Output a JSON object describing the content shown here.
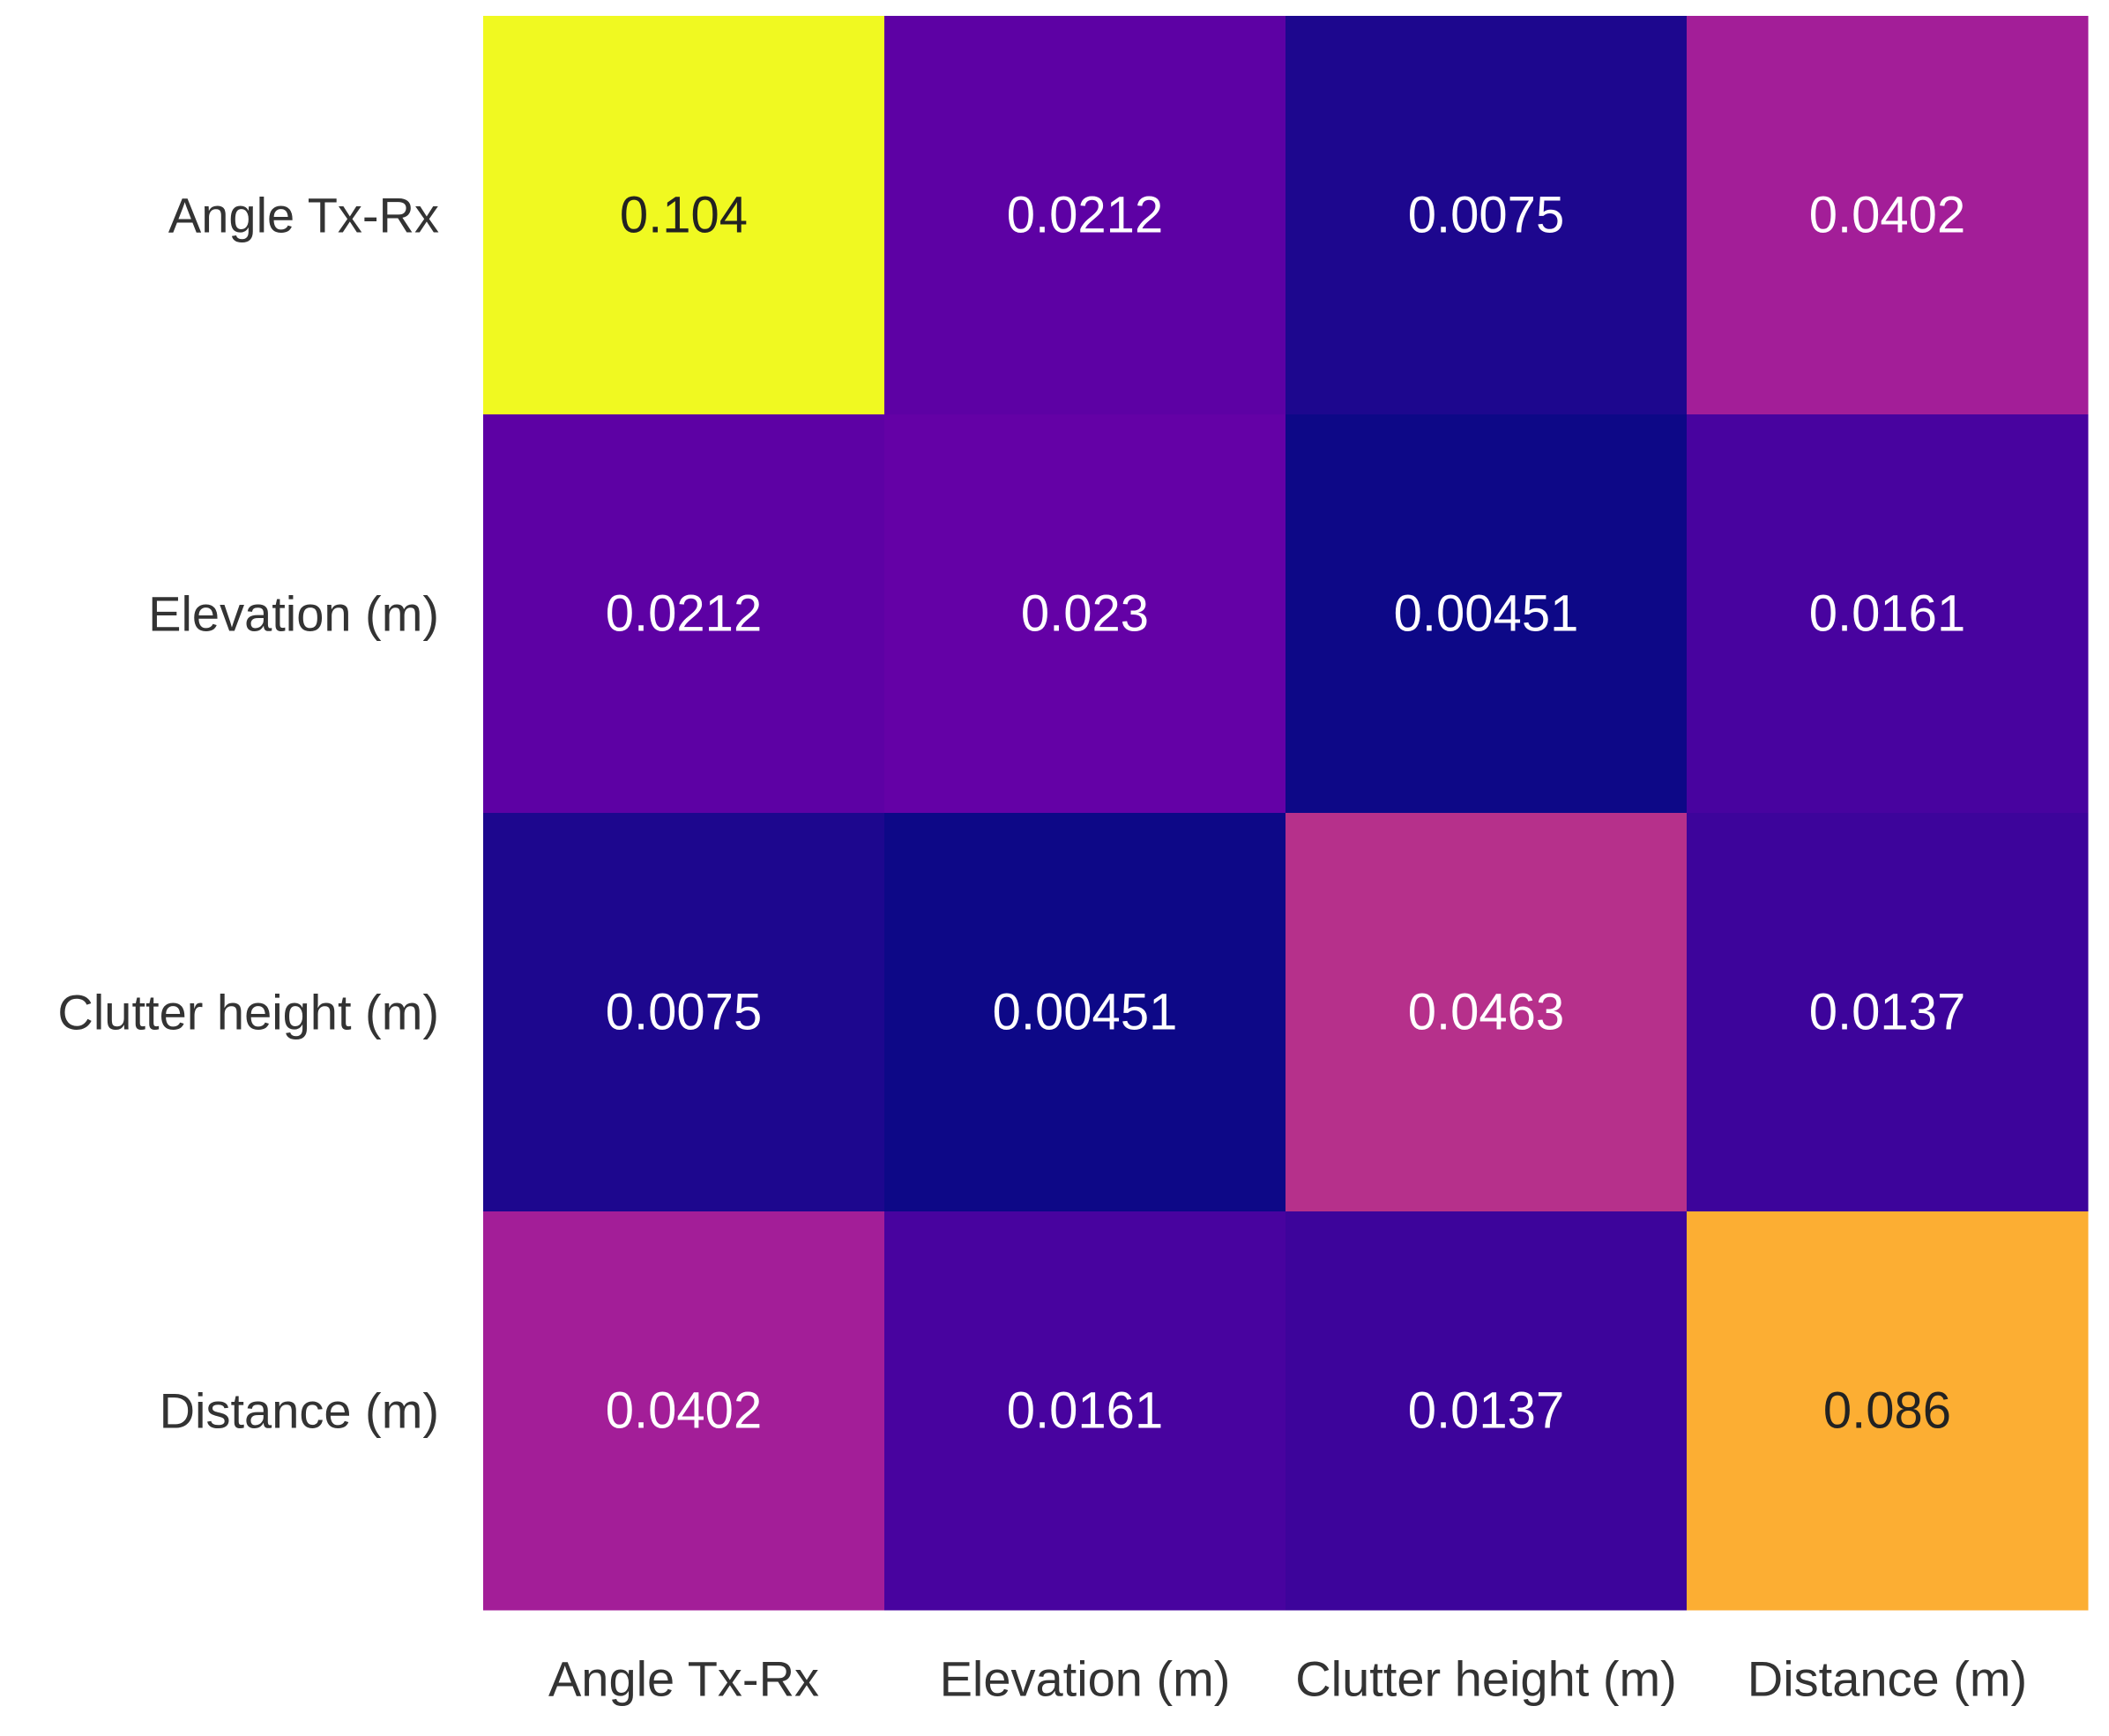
{
  "chart_data": {
    "type": "heatmap",
    "title": "",
    "xlabel": "",
    "ylabel": "",
    "row_labels": [
      "Angle Tx-Rx",
      "Elevation (m)",
      "Clutter height (m)",
      "Distance (m)"
    ],
    "column_labels": [
      "Angle Tx-Rx",
      "Elevation (m)",
      "Clutter height (m)",
      "Distance (m)"
    ],
    "values": [
      [
        0.104,
        0.0212,
        0.0075,
        0.0402
      ],
      [
        0.0212,
        0.023,
        0.00451,
        0.0161
      ],
      [
        0.0075,
        0.00451,
        0.0463,
        0.0137
      ],
      [
        0.0402,
        0.0161,
        0.0137,
        0.086
      ]
    ],
    "cell_labels": [
      [
        "0.104",
        "0.0212",
        "0.0075",
        "0.0402"
      ],
      [
        "0.0212",
        "0.023",
        "0.00451",
        "0.0161"
      ],
      [
        "0.0075",
        "0.00451",
        "0.0463",
        "0.0137"
      ],
      [
        "0.0402",
        "0.0161",
        "0.0137",
        "0.086"
      ]
    ],
    "colormap": "plasma",
    "value_range": [
      0.00451,
      0.104
    ],
    "grid": false,
    "colorbar": false
  },
  "colors": {
    "tick_label": "#333333",
    "cell_label_light": "#ffffff",
    "cell_label_dark": "#222222",
    "background": "#ffffff"
  }
}
